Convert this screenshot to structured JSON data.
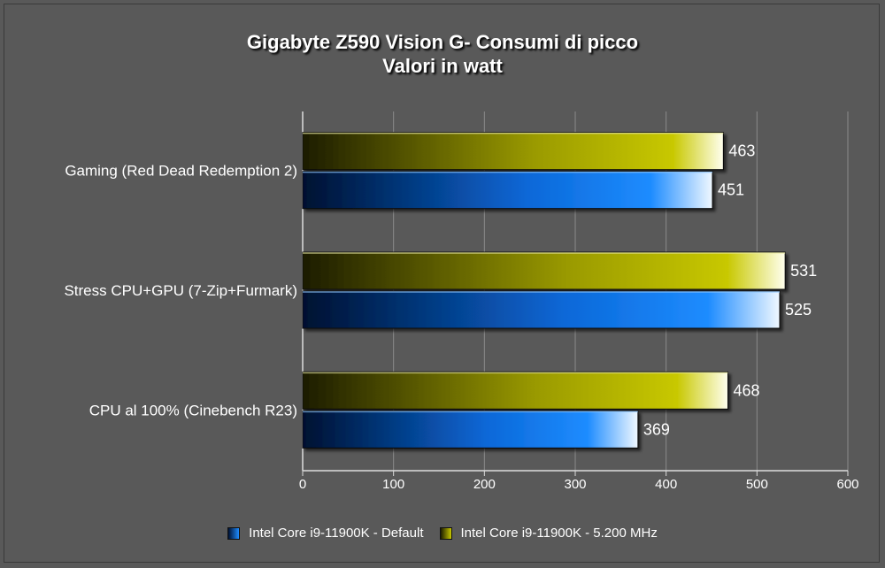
{
  "chart_data": {
    "type": "bar",
    "orientation": "horizontal",
    "title": "Gigabyte Z590 Vision G- Consumi di picco",
    "subtitle": "Valori in watt",
    "categories": [
      "Gaming (Red Dead Redemption 2)",
      "Stress CPU+GPU (7-Zip+Furmark)",
      "CPU al 100% (Cinebench R23)"
    ],
    "series": [
      {
        "name": "Intel Core i9-11900K - 5.200 MHz",
        "values": [
          463,
          531,
          468
        ],
        "color": "#c8c800"
      },
      {
        "name": "Intel Core i9-11900K - Default",
        "values": [
          451,
          525,
          369
        ],
        "color": "#1e8cff"
      }
    ],
    "xlim": [
      0,
      600
    ],
    "xticks": [
      "0",
      "100",
      "200",
      "300",
      "400",
      "500",
      "600"
    ],
    "grid": true,
    "legend": "bottom-center",
    "legend_order": [
      "Intel Core i9-11900K - Default",
      "Intel Core i9-11900K - 5.200 MHz"
    ]
  }
}
